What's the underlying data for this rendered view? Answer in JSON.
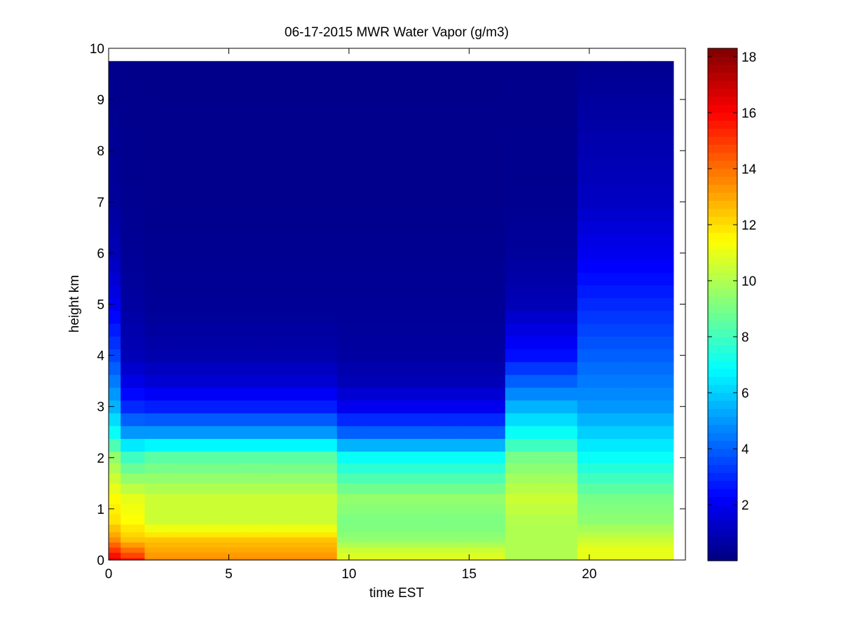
{
  "chart_data": {
    "type": "heatmap",
    "title": "06-17-2015 MWR Water Vapor (g/m3)",
    "xlabel": "time EST",
    "ylabel": "height km",
    "xlim": [
      0,
      24
    ],
    "ylim": [
      0,
      10
    ],
    "xticks": [
      0,
      5,
      10,
      15,
      20
    ],
    "yticks": [
      0,
      1,
      2,
      3,
      4,
      5,
      6,
      7,
      8,
      9,
      10
    ],
    "colorbar": {
      "colormap": "jet",
      "range": [
        0,
        18.3
      ],
      "ticks": [
        2,
        4,
        6,
        8,
        10,
        12,
        14,
        16,
        18
      ]
    },
    "x_centers": [
      0,
      1,
      2,
      3,
      4,
      5,
      6,
      7,
      8,
      9,
      10,
      11,
      12,
      13,
      14,
      15,
      16,
      17,
      18,
      19,
      20,
      21,
      22,
      23
    ],
    "y_centers": [
      0,
      0.1,
      0.2,
      0.3,
      0.4,
      0.5,
      0.6,
      0.8,
      1.0,
      1.2,
      1.4,
      1.6,
      1.8,
      2.0,
      2.25,
      2.5,
      2.75,
      3.0,
      3.25,
      3.5,
      3.75,
      4.0,
      4.25,
      4.5,
      4.75,
      5.0,
      5.25,
      5.5,
      5.75,
      6.0,
      6.25,
      6.5,
      6.75,
      7.0,
      7.25,
      7.5,
      7.75,
      8.0,
      8.25,
      8.5,
      8.75,
      9.0,
      9.25,
      9.5,
      9.75
    ],
    "profiles": {
      "peaked": {
        "y": [
          0,
          0.2,
          0.4,
          0.7,
          1.2,
          2.0,
          2.5,
          3.0,
          3.5,
          4.0,
          5.0,
          6.0,
          7.0,
          9.75
        ],
        "v": [
          16.5,
          15.0,
          13.5,
          12.0,
          11.5,
          9.5,
          7.0,
          5.5,
          4.5,
          3.5,
          2.0,
          1.0,
          0.5,
          0.2
        ]
      },
      "early": {
        "y": [
          0,
          0.2,
          0.4,
          0.7,
          1.2,
          2.0,
          2.5,
          3.0,
          3.5,
          4.0,
          5.0,
          6.0,
          7.0,
          9.75
        ],
        "v": [
          15.5,
          14.0,
          12.5,
          11.5,
          11.0,
          8.0,
          5.0,
          3.0,
          1.8,
          1.0,
          0.6,
          0.4,
          0.3,
          0.2
        ]
      },
      "morning": {
        "y": [
          0,
          0.2,
          0.4,
          0.7,
          1.2,
          2.0,
          2.5,
          3.0,
          3.5,
          4.0,
          5.0,
          6.0,
          7.0,
          9.75
        ],
        "v": [
          13.5,
          13.0,
          12.5,
          10.5,
          10.5,
          8.5,
          5.0,
          2.8,
          1.5,
          0.8,
          0.4,
          0.3,
          0.25,
          0.2
        ]
      },
      "midday": {
        "y": [
          0,
          0.2,
          0.4,
          0.7,
          1.2,
          2.0,
          2.5,
          3.0,
          3.5,
          4.0,
          5.0,
          6.0,
          7.0,
          9.75
        ],
        "v": [
          11.0,
          10.5,
          9.5,
          9.0,
          9.5,
          7.0,
          4.0,
          2.0,
          1.0,
          0.6,
          0.4,
          0.3,
          0.25,
          0.2
        ]
      },
      "evening": {
        "y": [
          0,
          0.2,
          0.4,
          0.7,
          1.2,
          2.0,
          2.5,
          3.0,
          3.5,
          4.0,
          5.0,
          6.0,
          7.0,
          9.75
        ],
        "v": [
          10.0,
          10.0,
          10.0,
          10.0,
          10.5,
          9.0,
          7.0,
          5.5,
          4.0,
          2.5,
          1.0,
          0.5,
          0.3,
          0.2
        ]
      },
      "late": {
        "y": [
          0,
          0.2,
          0.4,
          0.7,
          1.2,
          2.0,
          2.5,
          3.0,
          3.5,
          4.0,
          5.0,
          6.0,
          7.0,
          9.75
        ],
        "v": [
          11.0,
          11.0,
          10.5,
          9.5,
          9.0,
          7.0,
          6.0,
          5.0,
          4.5,
          4.0,
          3.0,
          2.0,
          1.2,
          0.3
        ]
      }
    },
    "column_profiles": [
      "peaked",
      "early",
      "morning",
      "morning",
      "morning",
      "morning",
      "morning",
      "morning",
      "morning",
      "morning",
      "midday",
      "midday",
      "midday",
      "midday",
      "midday",
      "midday",
      "midday",
      "evening",
      "evening",
      "evening",
      "late",
      "late",
      "late",
      "late"
    ]
  }
}
